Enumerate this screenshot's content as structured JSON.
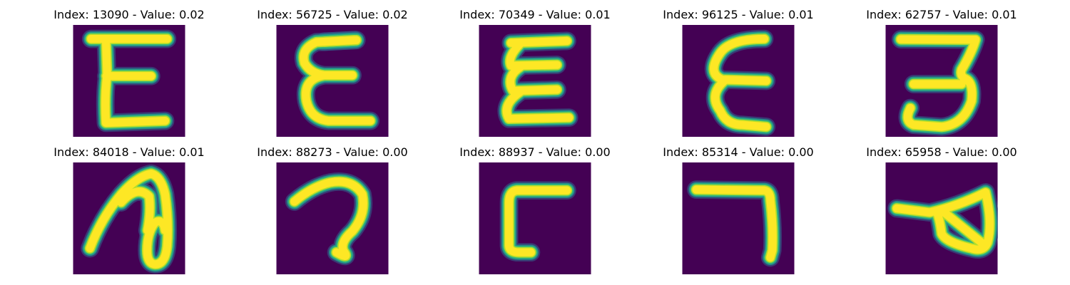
{
  "colors": {
    "background": "#440154",
    "stroke_core": "#fde725",
    "stroke_mid": "#b5de2b",
    "stroke_edge": "#35b779",
    "stroke_outer": "#21918c",
    "stroke_faint": "#31688e"
  },
  "panels": [
    {
      "title": "Index: 13090 - Value: 0.02",
      "glyph": "E-shape"
    },
    {
      "title": "Index: 56725 - Value: 0.02",
      "glyph": "epsilon-shape"
    },
    {
      "title": "Index: 70349 - Value: 0.01",
      "glyph": "epsilon-shape"
    },
    {
      "title": "Index: 96125 - Value: 0.01",
      "glyph": "epsilon-shape"
    },
    {
      "title": "Index: 62757 - Value: 0.01",
      "glyph": "reversed-E-shape"
    },
    {
      "title": "Index: 84018 - Value: 0.01",
      "glyph": "loop-n-shape"
    },
    {
      "title": "Index: 88273 - Value: 0.00",
      "glyph": "question-hook-shape"
    },
    {
      "title": "Index: 88937 - Value: 0.00",
      "glyph": "L-block-shape"
    },
    {
      "title": "Index: 85314 - Value: 0.00",
      "glyph": "seven-shape"
    },
    {
      "title": "Index: 65958 - Value: 0.00",
      "glyph": "triangle-loop-shape"
    }
  ]
}
